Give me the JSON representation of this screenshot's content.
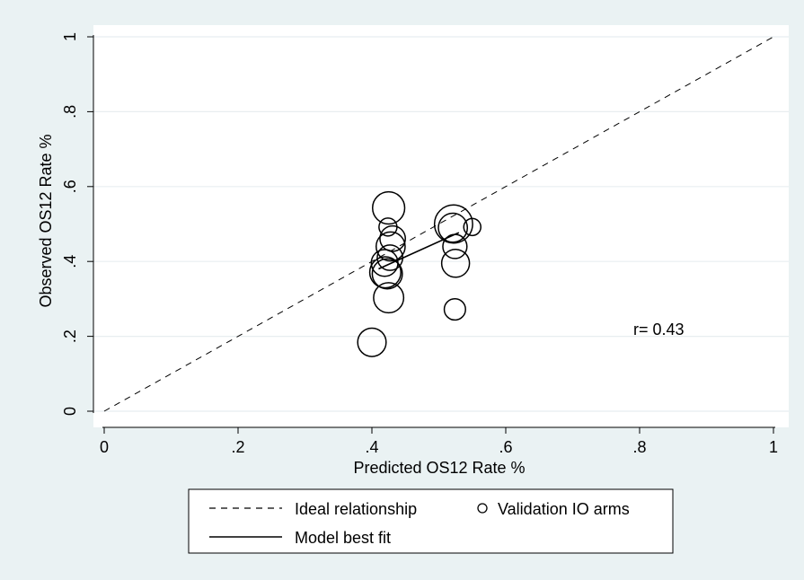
{
  "chart_data": {
    "type": "scatter",
    "xlabel": "Predicted OS12 Rate %",
    "ylabel": "Observed OS12 Rate %",
    "xlim": [
      0,
      1
    ],
    "ylim": [
      0,
      1
    ],
    "x_ticks": [
      {
        "value": 0,
        "label": "0"
      },
      {
        "value": 0.2,
        "label": ".2"
      },
      {
        "value": 0.4,
        "label": ".4"
      },
      {
        "value": 0.6,
        "label": ".6"
      },
      {
        "value": 0.8,
        "label": ".8"
      },
      {
        "value": 1,
        "label": "1"
      }
    ],
    "y_ticks": [
      {
        "value": 0,
        "label": "0"
      },
      {
        "value": 0.2,
        "label": ".2"
      },
      {
        "value": 0.4,
        "label": ".4"
      },
      {
        "value": 0.6,
        "label": ".6"
      },
      {
        "value": 0.8,
        "label": ".8"
      },
      {
        "value": 1,
        "label": "1"
      }
    ],
    "grid": true,
    "annotation": "r= 0.43",
    "series": [
      {
        "name": "Validation IO arms",
        "kind": "scatter-weighted",
        "points": [
          {
            "x": 0.425,
            "y": 0.543,
            "weight": 3.2
          },
          {
            "x": 0.424,
            "y": 0.492,
            "weight": 1.0
          },
          {
            "x": 0.431,
            "y": 0.461,
            "weight": 2.0
          },
          {
            "x": 0.428,
            "y": 0.44,
            "weight": 2.6
          },
          {
            "x": 0.427,
            "y": 0.41,
            "weight": 2.0
          },
          {
            "x": 0.419,
            "y": 0.396,
            "weight": 2.2
          },
          {
            "x": 0.42,
            "y": 0.371,
            "weight": 3.0
          },
          {
            "x": 0.423,
            "y": 0.367,
            "weight": 2.8
          },
          {
            "x": 0.425,
            "y": 0.303,
            "weight": 2.8
          },
          {
            "x": 0.4,
            "y": 0.184,
            "weight": 2.5
          },
          {
            "x": 0.522,
            "y": 0.5,
            "weight": 4.5
          },
          {
            "x": 0.521,
            "y": 0.49,
            "weight": 2.6
          },
          {
            "x": 0.524,
            "y": 0.44,
            "weight": 1.8
          },
          {
            "x": 0.525,
            "y": 0.395,
            "weight": 2.4
          },
          {
            "x": 0.524,
            "y": 0.272,
            "weight": 1.4
          },
          {
            "x": 0.55,
            "y": 0.492,
            "weight": 0.9
          }
        ]
      },
      {
        "name": "Model best fit",
        "kind": "line-solid",
        "x": [
          0.41,
          0.53
        ],
        "y": [
          0.38,
          0.477
        ]
      },
      {
        "name": "Ideal relationship",
        "kind": "line-dashed",
        "x": [
          0,
          1
        ],
        "y": [
          0,
          1
        ]
      }
    ],
    "legend": {
      "position": "bottom",
      "entries": [
        "Ideal relationship",
        "Validation IO arms",
        "Model best fit"
      ]
    }
  },
  "colors": {
    "background": "#eaf2f3",
    "plot_background": "#ffffff",
    "grid": "#e8eef0",
    "ink": "#000000"
  }
}
